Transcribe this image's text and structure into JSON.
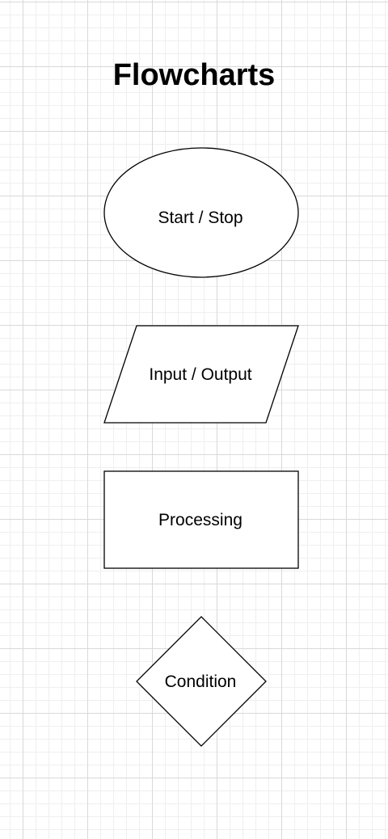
{
  "title": "Flowcharts",
  "shapes": {
    "start_stop": {
      "label": "Start / Stop",
      "kind": "ellipse"
    },
    "input_output": {
      "label": "Input / Output",
      "kind": "parallelogram"
    },
    "processing": {
      "label": "Processing",
      "kind": "rectangle"
    },
    "condition": {
      "label": "Condition",
      "kind": "diamond"
    }
  },
  "colors": {
    "stroke": "#000000",
    "fill": "#ffffff",
    "grid_major": "#d9d9d9",
    "grid_minor": "#efefef"
  }
}
